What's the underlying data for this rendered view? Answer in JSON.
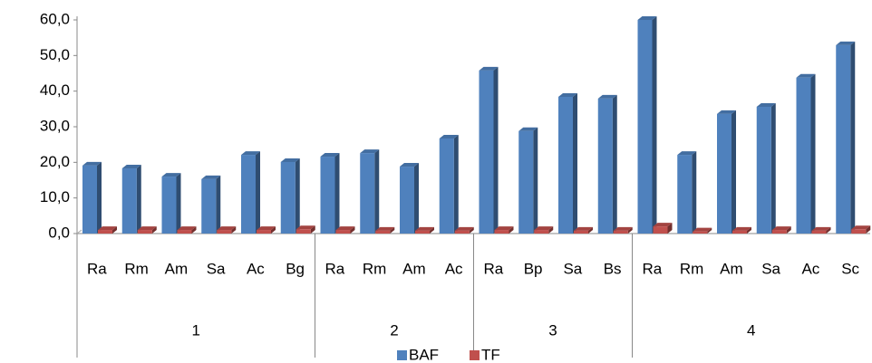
{
  "chart_data": {
    "type": "bar",
    "groups": [
      {
        "label": "1",
        "categories": [
          "Ra",
          "Rm",
          "Am",
          "Sa",
          "Ac",
          "Bg"
        ]
      },
      {
        "label": "2",
        "categories": [
          "Ra",
          "Rm",
          "Am",
          "Ac"
        ]
      },
      {
        "label": "3",
        "categories": [
          "Ra",
          "Bp",
          "Sa",
          "Bs"
        ]
      },
      {
        "label": "4",
        "categories": [
          "Ra",
          "Rm",
          "Am",
          "Sa",
          "Ac",
          "Sc"
        ]
      }
    ],
    "series": [
      {
        "name": "BAF",
        "color": "#4f81bd",
        "values": [
          19.1,
          18.3,
          16.0,
          15.3,
          22.1,
          20.1,
          21.6,
          22.6,
          18.8,
          26.7,
          45.8,
          28.8,
          38.4,
          37.9,
          60.0,
          22.1,
          33.6,
          35.6,
          43.8,
          52.9
        ]
      },
      {
        "name": "TF",
        "color": "#c0504d",
        "values": [
          1.0,
          1.0,
          1.0,
          1.0,
          1.0,
          1.2,
          1.0,
          0.8,
          0.8,
          0.8,
          1.0,
          1.0,
          0.8,
          0.8,
          2.0,
          0.6,
          0.8,
          1.0,
          0.8,
          1.2
        ]
      }
    ],
    "ylim": [
      0,
      60
    ],
    "yticks": [
      {
        "value": 0,
        "label": "0,0"
      },
      {
        "value": 10,
        "label": "10,0"
      },
      {
        "value": 20,
        "label": "20,0"
      },
      {
        "value": 30,
        "label": "30,0"
      },
      {
        "value": 40,
        "label": "40,0"
      },
      {
        "value": 50,
        "label": "50,0"
      },
      {
        "value": 60,
        "label": "60,0"
      }
    ],
    "legend": "bottom"
  }
}
